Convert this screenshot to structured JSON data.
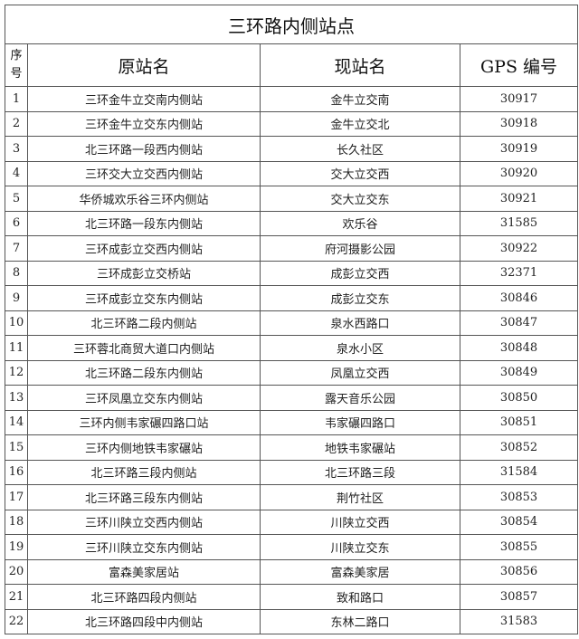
{
  "title": "三环路内侧站点",
  "headers": {
    "seq": "序号",
    "seq_line1": "序",
    "seq_line2": "号",
    "original": "原站名",
    "current": "现站名",
    "gps": "GPS 编号"
  },
  "rows": [
    {
      "no": "1",
      "original": "三环金牛立交南内侧站",
      "current": "金牛立交南",
      "gps": "30917"
    },
    {
      "no": "2",
      "original": "三环金牛立交东内侧站",
      "current": "金牛立交北",
      "gps": "30918"
    },
    {
      "no": "3",
      "original": "北三环路一段西内侧站",
      "current": "长久社区",
      "gps": "30919"
    },
    {
      "no": "4",
      "original": "三环交大立交西内侧站",
      "current": "交大立交西",
      "gps": "30920"
    },
    {
      "no": "5",
      "original": "华侨城欢乐谷三环内侧站",
      "current": "交大立交东",
      "gps": "30921"
    },
    {
      "no": "6",
      "original": "北三环路一段东内侧站",
      "current": "欢乐谷",
      "gps": "31585"
    },
    {
      "no": "7",
      "original": "三环成彭立交西内侧站",
      "current": "府河摄影公园",
      "gps": "30922"
    },
    {
      "no": "8",
      "original": "三环成彭立交桥站",
      "current": "成彭立交西",
      "gps": "32371"
    },
    {
      "no": "9",
      "original": "三环成彭立交东内侧站",
      "current": "成彭立交东",
      "gps": "30846"
    },
    {
      "no": "10",
      "original": "北三环路二段内侧站",
      "current": "泉水西路口",
      "gps": "30847"
    },
    {
      "no": "11",
      "original": "三环蓉北商贸大道口内侧站",
      "current": "泉水小区",
      "gps": "30848"
    },
    {
      "no": "12",
      "original": "北三环路二段东内侧站",
      "current": "凤凰立交西",
      "gps": "30849"
    },
    {
      "no": "13",
      "original": "三环凤凰立交东内侧站",
      "current": "露天音乐公园",
      "gps": "30850"
    },
    {
      "no": "14",
      "original": "三环内侧韦家碾四路口站",
      "current": "韦家碾四路口",
      "gps": "30851"
    },
    {
      "no": "15",
      "original": "三环内侧地铁韦家碾站",
      "current": "地铁韦家碾站",
      "gps": "30852"
    },
    {
      "no": "16",
      "original": "北三环路三段内侧站",
      "current": "北三环路三段",
      "gps": "31584"
    },
    {
      "no": "17",
      "original": "北三环路三段东内侧站",
      "current": "荆竹社区",
      "gps": "30853"
    },
    {
      "no": "18",
      "original": "三环川陕立交西内侧站",
      "current": "川陕立交西",
      "gps": "30854"
    },
    {
      "no": "19",
      "original": "三环川陕立交东内侧站",
      "current": "川陕立交东",
      "gps": "30855"
    },
    {
      "no": "20",
      "original": "富森美家居站",
      "current": "富森美家居",
      "gps": "30856"
    },
    {
      "no": "21",
      "original": "北三环路四段内侧站",
      "current": "致和路口",
      "gps": "30857"
    },
    {
      "no": "22",
      "original": "北三环路四段中内侧站",
      "current": "东林二路口",
      "gps": "31583"
    }
  ]
}
